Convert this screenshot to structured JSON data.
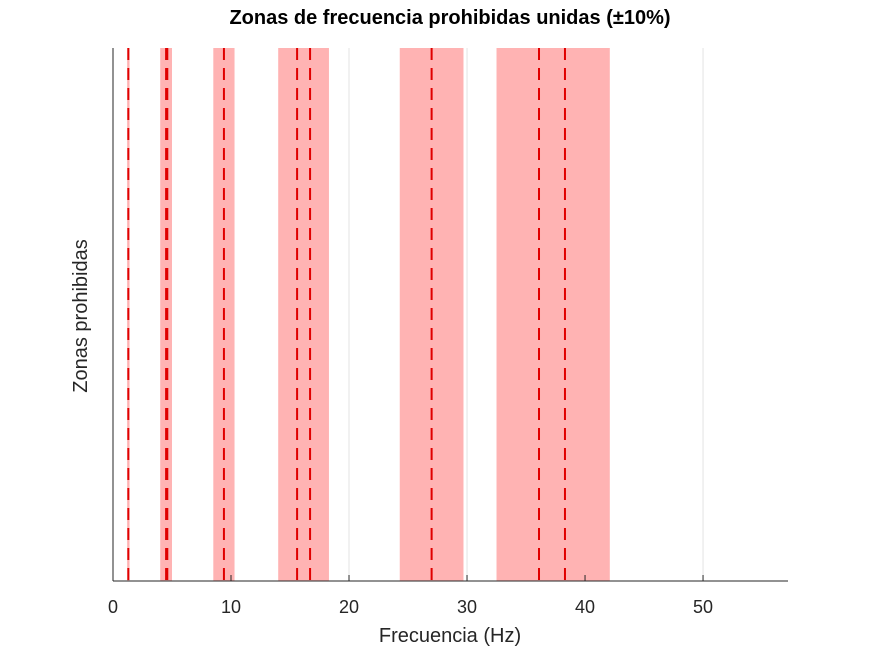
{
  "chart_data": {
    "type": "band",
    "title": "Zonas de frecuencia prohibidas unidas (±10%)",
    "xlabel": "Frecuencia (Hz)",
    "ylabel": "Zonas prohibidas",
    "xlim": [
      0,
      57.2
    ],
    "ylim": [
      0,
      1
    ],
    "xticks": [
      0,
      10,
      20,
      30,
      40,
      50
    ],
    "grid": true,
    "bands": [
      {
        "x0": 1.2,
        "x1": 1.4
      },
      {
        "x0": 4.0,
        "x1": 5.0
      },
      {
        "x0": 8.5,
        "x1": 10.3
      },
      {
        "x0": 14.0,
        "x1": 18.3
      },
      {
        "x0": 24.3,
        "x1": 29.7
      },
      {
        "x0": 32.5,
        "x1": 42.1
      }
    ],
    "frequencies": [
      1.3,
      4.5,
      4.6,
      9.4,
      15.6,
      16.7,
      27.0,
      36.1,
      38.3
    ],
    "band_color": "#ffb3b3",
    "line_color": "#e00000",
    "grid_color": "#e3e3e3"
  }
}
